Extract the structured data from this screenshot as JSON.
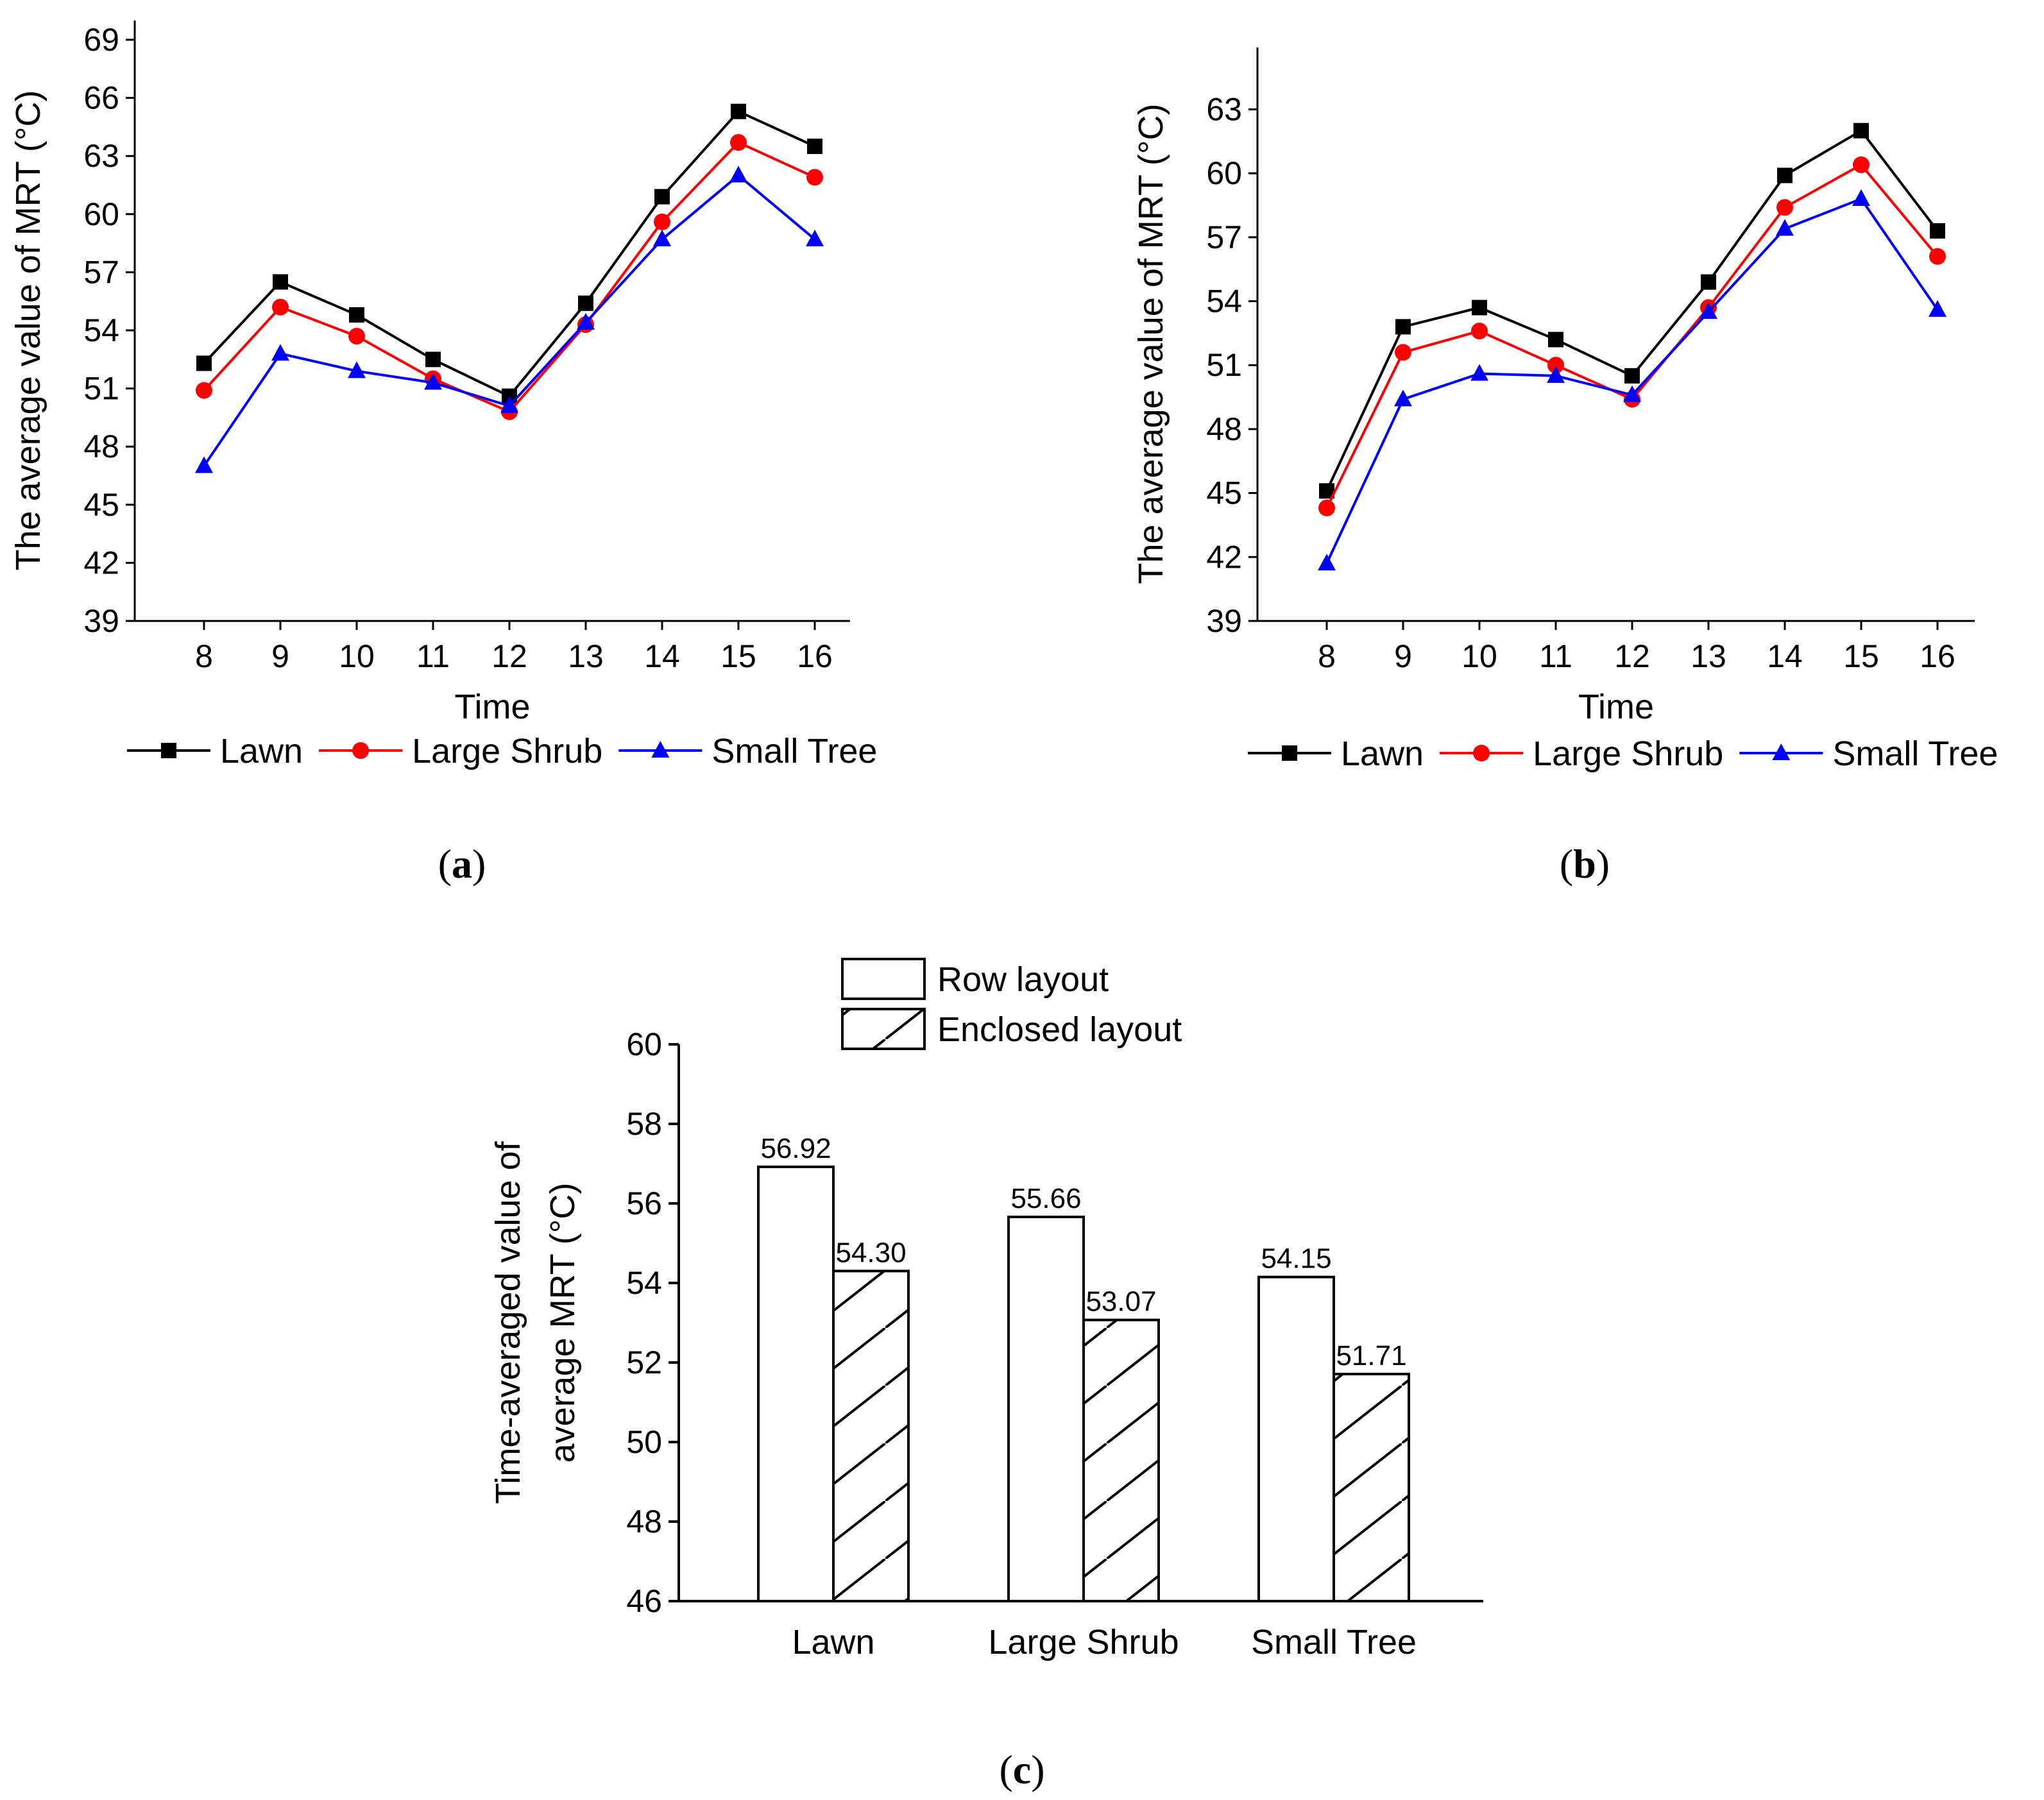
{
  "chart_data": [
    {
      "panel": "a",
      "type": "line",
      "title": "",
      "xlabel": "Time",
      "ylabel": "The average value of MRT (°C)",
      "x": [
        "8",
        "9",
        "10",
        "11",
        "12",
        "13",
        "14",
        "15",
        "16"
      ],
      "ylim": [
        39,
        69
      ],
      "yticks": [
        "39",
        "42",
        "45",
        "48",
        "51",
        "54",
        "57",
        "60",
        "63",
        "66",
        "69"
      ],
      "legend_position": "bottom",
      "series": [
        {
          "name": "Lawn",
          "color": "#000000",
          "marker": "square",
          "values": [
            52.3,
            56.5,
            54.8,
            52.5,
            50.6,
            55.4,
            60.9,
            65.3,
            63.5
          ]
        },
        {
          "name": "Large Shrub",
          "color": "#ff0000",
          "marker": "circle",
          "values": [
            50.9,
            55.2,
            53.7,
            51.5,
            49.8,
            54.3,
            59.6,
            63.7,
            61.9
          ]
        },
        {
          "name": "Small Tree",
          "color": "#0000ff",
          "marker": "triangle",
          "values": [
            47.0,
            52.8,
            51.9,
            51.3,
            50.1,
            54.4,
            58.7,
            62.0,
            58.7
          ]
        }
      ]
    },
    {
      "panel": "b",
      "type": "line",
      "title": "",
      "xlabel": "Time",
      "ylabel": "The average value of MRT (°C)",
      "x": [
        "8",
        "9",
        "10",
        "11",
        "12",
        "13",
        "14",
        "15",
        "16"
      ],
      "ylim": [
        39,
        65
      ],
      "yticks": [
        "39",
        "42",
        "45",
        "48",
        "51",
        "54",
        "57",
        "60",
        "63"
      ],
      "legend_position": "bottom",
      "series": [
        {
          "name": "Lawn",
          "color": "#000000",
          "marker": "square",
          "values": [
            45.1,
            52.8,
            53.7,
            52.2,
            50.5,
            54.9,
            59.9,
            62.0,
            57.3
          ]
        },
        {
          "name": "Large Shrub",
          "color": "#ff0000",
          "marker": "circle",
          "values": [
            44.3,
            51.6,
            52.6,
            51.0,
            49.4,
            53.7,
            58.4,
            60.4,
            56.1
          ]
        },
        {
          "name": "Small Tree",
          "color": "#0000ff",
          "marker": "triangle",
          "values": [
            41.7,
            49.4,
            50.6,
            50.5,
            49.6,
            53.5,
            57.4,
            58.8,
            53.6
          ]
        }
      ]
    },
    {
      "panel": "c",
      "type": "bar",
      "title": "",
      "xlabel": "",
      "ylabel": [
        "Time-averaged value of",
        "average MRT (°C)"
      ],
      "categories": [
        "Lawn",
        "Large Shrub",
        "Small Tree"
      ],
      "ylim": [
        46,
        60
      ],
      "yticks": [
        "46",
        "48",
        "50",
        "52",
        "54",
        "56",
        "58",
        "60"
      ],
      "legend_position": "top",
      "series": [
        {
          "name": "Row layout",
          "fill": "plain",
          "values": [
            56.92,
            55.66,
            54.15
          ],
          "labels": [
            "56.92",
            "55.66",
            "54.15"
          ]
        },
        {
          "name": "Enclosed layout",
          "fill": "hatched",
          "values": [
            54.3,
            53.07,
            51.71
          ],
          "labels": [
            "54.30",
            "53.07",
            "51.71"
          ]
        }
      ]
    }
  ],
  "captions": {
    "a": {
      "open": "(",
      "letter": "a",
      "close": ")"
    },
    "b": {
      "open": "(",
      "letter": "b",
      "close": ")"
    },
    "c": {
      "open": "(",
      "letter": "c",
      "close": ")"
    }
  }
}
